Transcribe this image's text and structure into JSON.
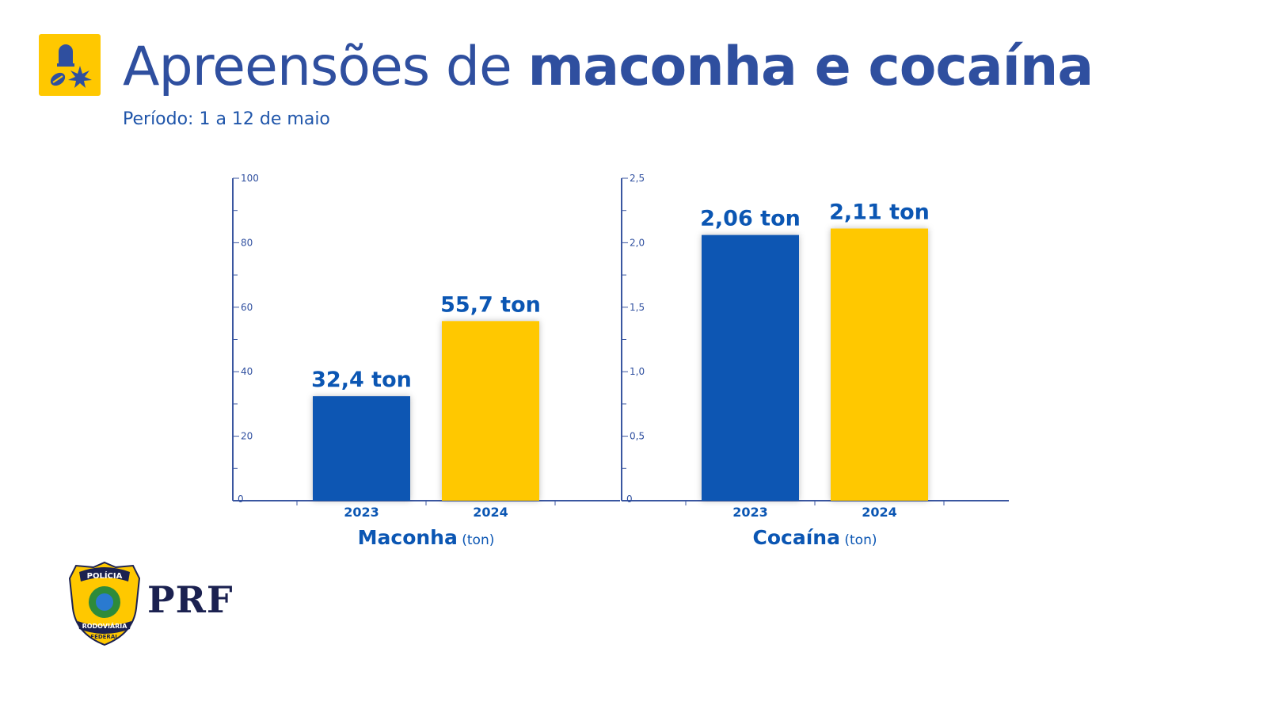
{
  "header": {
    "icon": "drugs-seizure-icon",
    "title_regular": "Apreensões de ",
    "title_bold": "maconha e cocaína",
    "subtitle": "Período: 1 a 12 de maio"
  },
  "colors": {
    "series_2023": "#0b56b3",
    "series_2024": "#ffc800",
    "text": "#2f4f9f",
    "axis": "#3a56a0"
  },
  "chart_data": [
    {
      "type": "bar",
      "title": "Maconha",
      "unit_label": "(ton)",
      "categories": [
        "2023",
        "2024"
      ],
      "values": [
        32.4,
        55.7
      ],
      "data_labels": [
        "32,4 ton",
        "55,7 ton"
      ],
      "ylim": [
        0,
        100
      ],
      "yticks": [
        "0",
        "20",
        "40",
        "60",
        "80",
        "100"
      ],
      "ytick_values": [
        0,
        20,
        40,
        60,
        80,
        100
      ],
      "grid": false
    },
    {
      "type": "bar",
      "title": "Cocaína",
      "unit_label": "(ton)",
      "categories": [
        "2023",
        "2024"
      ],
      "values": [
        2.06,
        2.11
      ],
      "data_labels": [
        "2,06 ton",
        "2,11 ton"
      ],
      "ylim": [
        0,
        2.5
      ],
      "yticks": [
        "0",
        "0,5",
        "1,0",
        "1,5",
        "2,0",
        "2,5"
      ],
      "ytick_values": [
        0,
        0.5,
        1.0,
        1.5,
        2.0,
        2.5
      ],
      "grid": false
    }
  ],
  "footer": {
    "badge_top": "POLÍCIA",
    "badge_bottom1": "RODOVIÁRIA",
    "badge_bottom2": "FEDERAL",
    "brand": "PRF"
  }
}
